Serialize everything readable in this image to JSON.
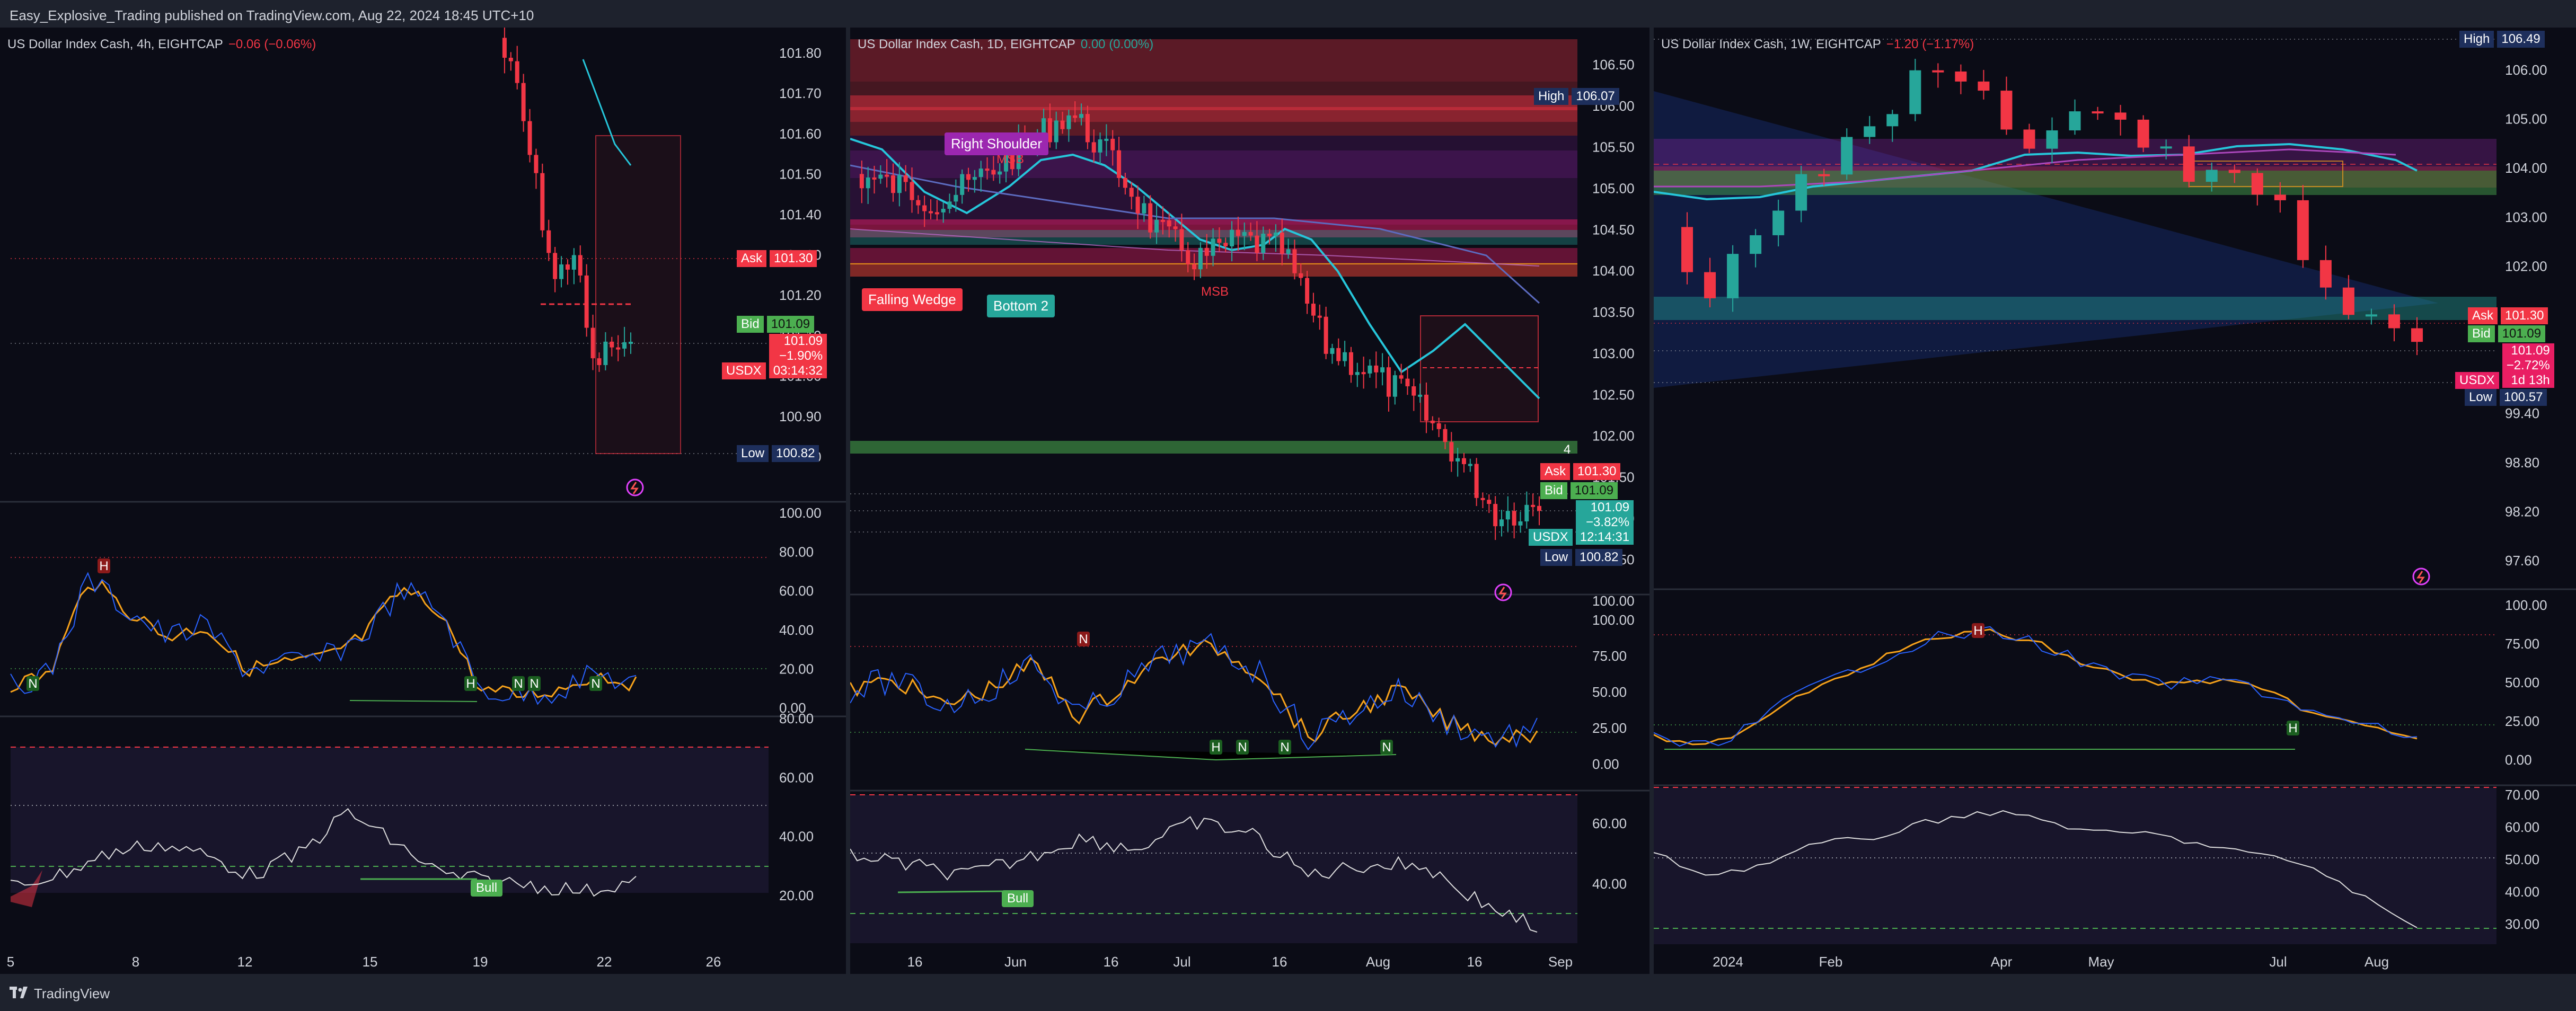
{
  "header": {
    "publisher": "Easy_Explosive_Trading published on TradingView.com, Aug 22, 2024 18:45 UTC+10"
  },
  "footer": {
    "brand": "TradingView"
  },
  "colors": {
    "bg": "#0b0c16",
    "up": "#26a69a",
    "down": "#f23645",
    "ask": "#f23645",
    "bid": "#4caf50",
    "low": "#1e2f5c",
    "high": "#1e2f5c"
  },
  "panels": [
    {
      "legend": "US Dollar Index Cash, 4h, EIGHTCAP",
      "change": "−0.06 (−0.06%)",
      "change_color": "#f23645",
      "price_ticks": [
        "101.80",
        "101.70",
        "101.60",
        "101.50",
        "101.40",
        "101.30",
        "101.20",
        "101.10",
        "101.00",
        "100.90",
        "100.80"
      ],
      "ask": {
        "label": "Ask",
        "value": "101.30"
      },
      "bid": {
        "label": "Bid",
        "value": "101.09"
      },
      "last": {
        "label": "USDX",
        "value": "101.09",
        "change": "−1.90%",
        "countdown": "03:14:32"
      },
      "low": {
        "label": "Low",
        "value": "100.82"
      },
      "rsi_ticks": [
        "100.00",
        "80.00",
        "60.00",
        "40.00",
        "20.00",
        "0.00"
      ],
      "osc_ticks": [
        "80.00",
        "60.00",
        "40.00",
        "20.00"
      ],
      "x_ticks": [
        "5",
        "8",
        "12",
        "15",
        "19",
        "22",
        "26"
      ],
      "markers": [
        "H",
        "N",
        "H",
        "N",
        "N",
        "N"
      ],
      "bull": "Bull"
    },
    {
      "legend": "US Dollar Index Cash, 1D, EIGHTCAP",
      "change": "0.00 (0.00%)",
      "change_color": "#26a69a",
      "price_ticks": [
        "106.50",
        "106.00",
        "105.50",
        "105.00",
        "104.50",
        "104.00",
        "103.50",
        "103.00",
        "102.50",
        "102.00",
        "101.50",
        "101.00",
        "100.50",
        "100.00"
      ],
      "high": {
        "label": "High",
        "value": "106.07"
      },
      "ask": {
        "label": "Ask",
        "value": "101.30"
      },
      "bid": {
        "label": "Bid",
        "value": "101.09"
      },
      "last": {
        "label": "USDX",
        "value": "101.09",
        "change": "−3.82%",
        "countdown": "12:14:31"
      },
      "low": {
        "label": "Low",
        "value": "100.82"
      },
      "rsi_ticks": [
        "100.00",
        "75.00",
        "50.00",
        "25.00",
        "0.00"
      ],
      "osc_ticks": [
        "60.00",
        "40.00"
      ],
      "x_ticks": [
        "16",
        "Jun",
        "16",
        "Jul",
        "16",
        "Aug",
        "16",
        "Sep"
      ],
      "annotations": {
        "right_shoulder": "Right Shoulder",
        "falling_wedge": "Falling Wedge",
        "bottom2": "Bottom 2",
        "msb1": "MSB",
        "msb2": "MSB",
        "four": "4"
      },
      "markers": [
        "N",
        "H",
        "N",
        "N",
        "N"
      ],
      "bull": "Bull"
    },
    {
      "legend": "US Dollar Index Cash, 1W, EIGHTCAP",
      "change": "−1.20 (−1.17%)",
      "change_color": "#f23645",
      "price_ticks": [
        "106.00",
        "105.00",
        "104.00",
        "103.00",
        "102.00",
        "101.00",
        "100.00",
        "99.40",
        "98.80",
        "98.20",
        "97.60"
      ],
      "high": {
        "label": "High",
        "value": "106.49"
      },
      "ask": {
        "label": "Ask",
        "value": "101.30"
      },
      "bid": {
        "label": "Bid",
        "value": "101.09"
      },
      "last": {
        "label": "USDX",
        "value": "101.09",
        "change": "−2.72%",
        "countdown": "1d 13h"
      },
      "low": {
        "label": "Low",
        "value": "100.57"
      },
      "rsi_ticks": [
        "100.00",
        "75.00",
        "50.00",
        "25.00",
        "0.00"
      ],
      "osc_ticks": [
        "70.00",
        "60.00",
        "50.00",
        "40.00",
        "30.00"
      ],
      "x_ticks": [
        "2024",
        "Feb",
        "Apr",
        "May",
        "Jul",
        "Aug"
      ],
      "markers": [
        "H",
        "H"
      ]
    }
  ]
}
